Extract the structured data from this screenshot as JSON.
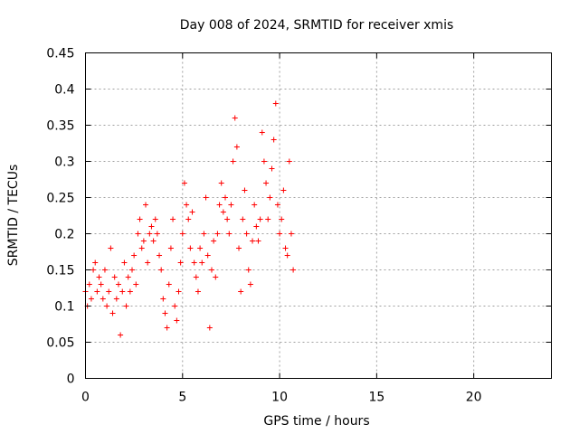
{
  "chart_data": {
    "type": "scatter",
    "title": "Day 008 of 2024, SRMTID for receiver xmis",
    "xlabel": "GPS time / hours",
    "ylabel": "SRMTID / TECUs",
    "xlim": [
      0,
      24
    ],
    "ylim": [
      0,
      0.45
    ],
    "xticks": [
      0,
      5,
      10,
      15,
      20
    ],
    "yticks": [
      0,
      0.05,
      0.1,
      0.15,
      0.2,
      0.25,
      0.3,
      0.35,
      0.4,
      0.45
    ],
    "xtick_labels": [
      "0",
      "5",
      "10",
      "15",
      "20"
    ],
    "ytick_labels": [
      "0",
      "0.05",
      "0.1",
      "0.15",
      "0.2",
      "0.25",
      "0.3",
      "0.35",
      "0.4",
      "0.45"
    ],
    "grid": true,
    "marker": "plus",
    "color": "#ff0000",
    "series": [
      {
        "name": "SRMTID",
        "x": [
          0.0,
          0.1,
          0.2,
          0.3,
          0.4,
          0.5,
          0.6,
          0.7,
          0.8,
          0.9,
          1.0,
          1.1,
          1.2,
          1.3,
          1.4,
          1.5,
          1.6,
          1.7,
          1.8,
          1.9,
          2.0,
          2.1,
          2.2,
          2.3,
          2.4,
          2.5,
          2.6,
          2.7,
          2.8,
          2.9,
          3.0,
          3.1,
          3.2,
          3.3,
          3.4,
          3.5,
          3.6,
          3.7,
          3.8,
          3.9,
          4.0,
          4.1,
          4.2,
          4.3,
          4.4,
          4.5,
          4.6,
          4.7,
          4.8,
          4.9,
          5.0,
          5.1,
          5.2,
          5.3,
          5.4,
          5.5,
          5.6,
          5.7,
          5.8,
          5.9,
          6.0,
          6.1,
          6.2,
          6.3,
          6.4,
          6.5,
          6.6,
          6.7,
          6.8,
          6.9,
          7.0,
          7.1,
          7.2,
          7.3,
          7.4,
          7.5,
          7.6,
          7.7,
          7.8,
          7.9,
          8.0,
          8.1,
          8.2,
          8.3,
          8.4,
          8.5,
          8.6,
          8.7,
          8.8,
          8.9,
          9.0,
          9.1,
          9.2,
          9.3,
          9.4,
          9.5,
          9.6,
          9.7,
          9.8,
          9.9,
          10.0,
          10.1,
          10.2,
          10.3,
          10.4,
          10.5,
          10.6,
          10.7
        ],
        "y": [
          0.12,
          0.1,
          0.13,
          0.11,
          0.15,
          0.16,
          0.12,
          0.14,
          0.13,
          0.11,
          0.15,
          0.1,
          0.12,
          0.18,
          0.09,
          0.14,
          0.11,
          0.13,
          0.06,
          0.12,
          0.16,
          0.1,
          0.14,
          0.12,
          0.15,
          0.17,
          0.13,
          0.2,
          0.22,
          0.18,
          0.19,
          0.24,
          0.16,
          0.2,
          0.21,
          0.19,
          0.22,
          0.2,
          0.17,
          0.15,
          0.11,
          0.09,
          0.07,
          0.13,
          0.18,
          0.22,
          0.1,
          0.08,
          0.12,
          0.16,
          0.2,
          0.27,
          0.24,
          0.22,
          0.18,
          0.23,
          0.16,
          0.14,
          0.12,
          0.18,
          0.16,
          0.2,
          0.25,
          0.17,
          0.07,
          0.15,
          0.19,
          0.14,
          0.2,
          0.24,
          0.27,
          0.23,
          0.25,
          0.22,
          0.2,
          0.24,
          0.3,
          0.36,
          0.32,
          0.18,
          0.12,
          0.22,
          0.26,
          0.2,
          0.15,
          0.13,
          0.19,
          0.24,
          0.21,
          0.19,
          0.22,
          0.34,
          0.3,
          0.27,
          0.22,
          0.25,
          0.29,
          0.33,
          0.38,
          0.24,
          0.2,
          0.22,
          0.26,
          0.18,
          0.17,
          0.3,
          0.2,
          0.15
        ]
      }
    ]
  }
}
